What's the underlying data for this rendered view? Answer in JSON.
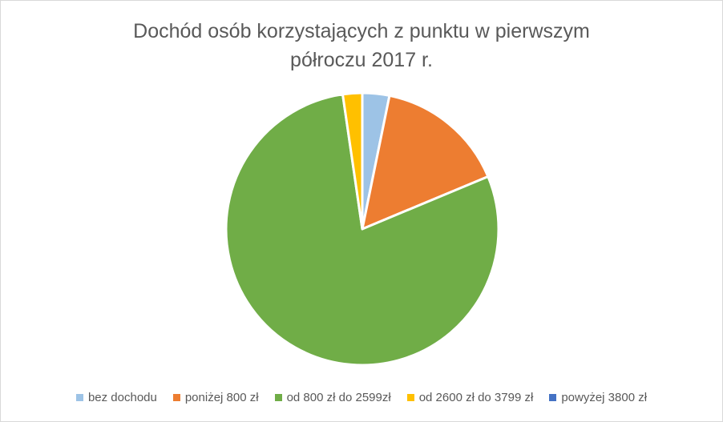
{
  "chart_data": {
    "type": "pie",
    "title_lines": [
      "Dochód osób korzystających z punktu w pierwszym",
      "półroczu 2017 r."
    ],
    "categories": [
      "bez dochodu",
      "poniżej 800 zł",
      "od 800 zł do 2599zł",
      "od 2600 zł do 3799 zł",
      "powyżej 3800 zł"
    ],
    "values": [
      3.2,
      15.5,
      79.0,
      2.3,
      0.0
    ],
    "colors": [
      "#9dc3e6",
      "#ed7d31",
      "#70ad47",
      "#ffc000",
      "#4472c4"
    ],
    "legend_position": "bottom"
  }
}
